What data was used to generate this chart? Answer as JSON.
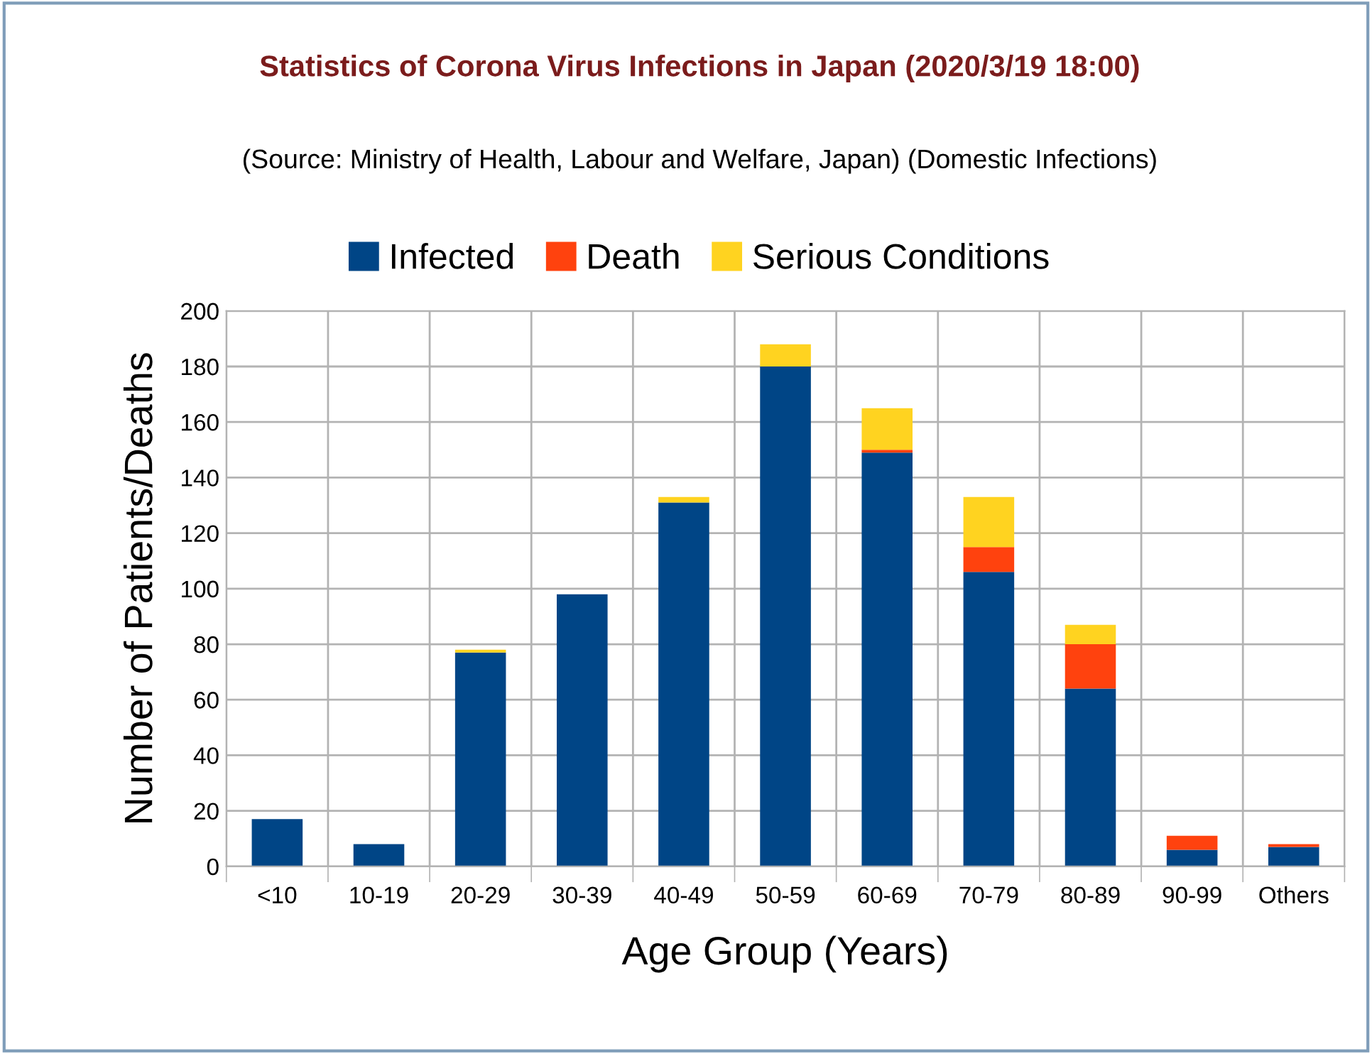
{
  "chart_data": {
    "type": "bar",
    "title": "Statistics of Corona Virus Infections in Japan (2020/3/19 18:00)",
    "subtitle": "(Source: Ministry of Health, Labour and Welfare, Japan) (Domestic Infections)",
    "xlabel": "Age Group (Years)",
    "ylabel": "Number of Patients/Deaths",
    "categories": [
      "<10",
      "10-19",
      "20-29",
      "30-39",
      "40-49",
      "50-59",
      "60-69",
      "70-79",
      "80-89",
      "90-99",
      "Others"
    ],
    "stacked": true,
    "series": [
      {
        "name": "Infected",
        "color": "#004586",
        "values": [
          17,
          8,
          77,
          98,
          131,
          180,
          149,
          106,
          64,
          6,
          7
        ]
      },
      {
        "name": "Death",
        "color": "#ff420e",
        "values": [
          0,
          0,
          0,
          0,
          0,
          0,
          1,
          9,
          16,
          5,
          1
        ]
      },
      {
        "name": "Serious Conditions",
        "color": "#ffd320",
        "values": [
          0,
          0,
          1,
          0,
          2,
          8,
          15,
          18,
          7,
          0,
          0
        ]
      }
    ],
    "ylim": [
      0,
      200
    ],
    "yticks": [
      0,
      20,
      40,
      60,
      80,
      100,
      120,
      140,
      160,
      180,
      200
    ],
    "grid": true,
    "legend": "top"
  }
}
